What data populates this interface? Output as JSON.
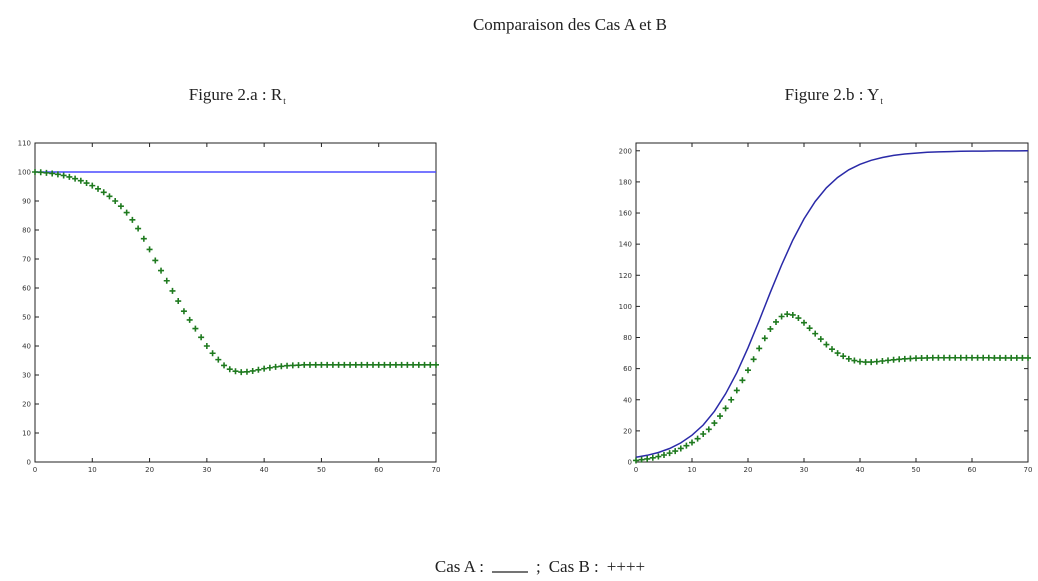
{
  "title": "Comparaison des Cas A et B",
  "legend": {
    "entries": [
      {
        "label": "Cas A :",
        "marker": "line",
        "color": "#222222"
      },
      {
        "label": "Cas B :",
        "marker": "++++"
      }
    ],
    "separator": ";"
  },
  "chart_data": [
    {
      "type": "line",
      "title": "Figure 2.a : R",
      "title_subscript": "t",
      "xlim": [
        0,
        70
      ],
      "xticks": [
        0,
        10,
        20,
        30,
        40,
        50,
        60,
        70
      ],
      "ylim": [
        0,
        110
      ],
      "yticks": [
        0,
        10,
        20,
        30,
        40,
        50,
        60,
        70,
        80,
        90,
        100,
        110
      ],
      "series": [
        {
          "style": "line",
          "color": "#4a4aff",
          "x": [
            0,
            70
          ],
          "values": [
            100,
            100
          ]
        },
        {
          "style": "plus",
          "color": "#1f7a1f",
          "x": [
            0,
            1,
            2,
            3,
            4,
            5,
            6,
            7,
            8,
            9,
            10,
            11,
            12,
            13,
            14,
            15,
            16,
            17,
            18,
            19,
            20,
            21,
            22,
            23,
            24,
            25,
            26,
            27,
            28,
            29,
            30,
            31,
            32,
            33,
            34,
            35,
            36,
            37,
            38,
            39,
            40,
            41,
            42,
            43,
            44,
            45,
            46,
            47,
            48,
            49,
            50,
            51,
            52,
            53,
            54,
            55,
            56,
            57,
            58,
            59,
            60,
            61,
            62,
            63,
            64,
            65,
            66,
            67,
            68,
            69,
            70
          ],
          "values": [
            100,
            99.9,
            99.7,
            99.5,
            99.2,
            98.8,
            98.3,
            97.7,
            97,
            96.2,
            95.3,
            94.2,
            93,
            91.6,
            90,
            88.2,
            86,
            83.5,
            80.5,
            77,
            73.3,
            69.5,
            66,
            62.5,
            59,
            55.5,
            52,
            49,
            46,
            43,
            40,
            37.5,
            35.3,
            33.3,
            32,
            31.3,
            31,
            31.1,
            31.4,
            31.8,
            32.2,
            32.5,
            32.8,
            33,
            33.2,
            33.3,
            33.4,
            33.5,
            33.5,
            33.5,
            33.5,
            33.5,
            33.5,
            33.5,
            33.5,
            33.5,
            33.5,
            33.5,
            33.5,
            33.5,
            33.5,
            33.5,
            33.5,
            33.5,
            33.5,
            33.5,
            33.5,
            33.5,
            33.5,
            33.5,
            33.5
          ]
        }
      ]
    },
    {
      "type": "line",
      "title": "Figure 2.b : Y",
      "title_subscript": "t",
      "xlim": [
        0,
        70
      ],
      "xticks": [
        0,
        10,
        20,
        30,
        40,
        50,
        60,
        70
      ],
      "ylim": [
        0,
        205
      ],
      "yticks": [
        0,
        20,
        40,
        60,
        80,
        100,
        120,
        140,
        160,
        180,
        200
      ],
      "series": [
        {
          "style": "line",
          "color": "#2a2aa8",
          "x": [
            0,
            2,
            4,
            6,
            8,
            10,
            12,
            14,
            16,
            18,
            20,
            22,
            24,
            26,
            28,
            30,
            32,
            34,
            36,
            38,
            40,
            42,
            44,
            46,
            48,
            50,
            52,
            54,
            56,
            58,
            60,
            62,
            64,
            66,
            68,
            70
          ],
          "values": [
            3,
            4.3,
            6.1,
            8.7,
            12.3,
            17.2,
            23.8,
            32.6,
            43.8,
            57.4,
            73.4,
            90.9,
            109.1,
            126.6,
            142.6,
            156.2,
            167.4,
            176.2,
            182.8,
            187.8,
            191.3,
            193.9,
            195.7,
            197,
            197.9,
            198.5,
            199,
            199.3,
            199.5,
            199.7,
            199.8,
            199.8,
            199.9,
            199.9,
            199.9,
            200
          ]
        },
        {
          "style": "plus",
          "color": "#1f7a1f",
          "x": [
            0,
            1,
            2,
            3,
            4,
            5,
            6,
            7,
            8,
            9,
            10,
            11,
            12,
            13,
            14,
            15,
            16,
            17,
            18,
            19,
            20,
            21,
            22,
            23,
            24,
            25,
            26,
            27,
            28,
            29,
            30,
            31,
            32,
            33,
            34,
            35,
            36,
            37,
            38,
            39,
            40,
            41,
            42,
            43,
            44,
            45,
            46,
            47,
            48,
            49,
            50,
            51,
            52,
            53,
            54,
            55,
            56,
            57,
            58,
            59,
            60,
            61,
            62,
            63,
            64,
            65,
            66,
            67,
            68,
            69,
            70
          ],
          "values": [
            1,
            1.5,
            2,
            2.7,
            3.5,
            4.5,
            5.7,
            7,
            8.7,
            10.5,
            12.5,
            15,
            18,
            21,
            25,
            29.5,
            34.5,
            40,
            46,
            52.5,
            59,
            66,
            73,
            79.5,
            85.5,
            90,
            93.5,
            95,
            94.5,
            92.5,
            89.5,
            86,
            82.5,
            79,
            75.5,
            72.5,
            70,
            68,
            66.3,
            65.2,
            64.5,
            64.2,
            64.2,
            64.5,
            64.9,
            65.3,
            65.7,
            66,
            66.3,
            66.5,
            66.7,
            66.8,
            66.9,
            67,
            67,
            67,
            67,
            67,
            67,
            67,
            67,
            67,
            67,
            67,
            66.9,
            66.9,
            66.9,
            66.9,
            66.9,
            66.9,
            66.9
          ]
        }
      ]
    }
  ]
}
